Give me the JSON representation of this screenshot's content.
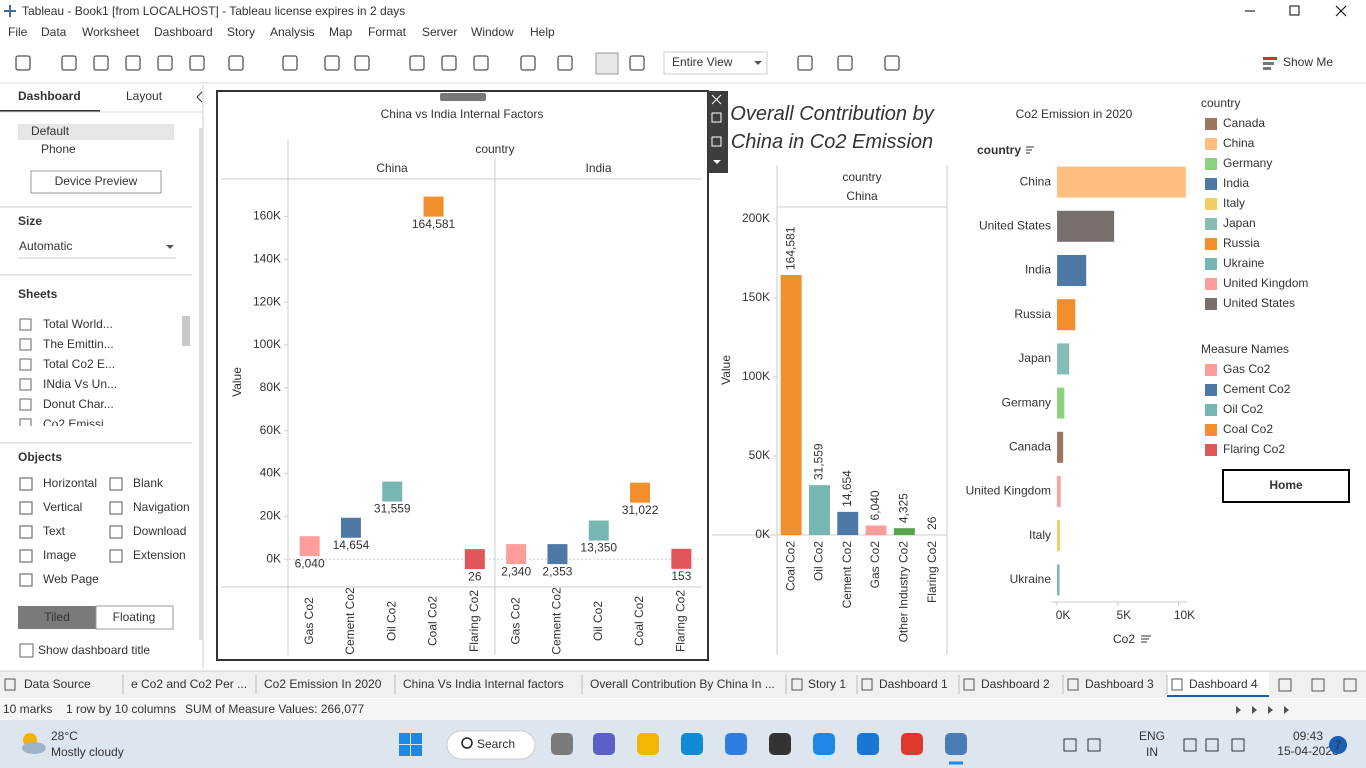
{
  "window": {
    "title": "Tableau - Book1 [from LOCALHOST] - Tableau license expires in 2 days"
  },
  "menu": [
    "File",
    "Data",
    "Worksheet",
    "Dashboard",
    "Story",
    "Analysis",
    "Map",
    "Format",
    "Server",
    "Window",
    "Help"
  ],
  "toolbar": {
    "view": "Entire View",
    "show_me": "Show Me"
  },
  "sidebar": {
    "tabs": [
      "Dashboard",
      "Layout"
    ],
    "devices": [
      "Default",
      "Phone"
    ],
    "device_preview": "Device Preview",
    "size_heading": "Size",
    "size": "Automatic",
    "sheets_heading": "Sheets",
    "sheets": [
      "Total World...",
      "The Emittin...",
      "Total Co2 E...",
      "INdia Vs Un...",
      "Donut Char...",
      "Co2 Emissi..."
    ],
    "objects_heading": "Objects",
    "objects": [
      "Horizontal",
      "Blank",
      "Vertical",
      "Navigation",
      "Text",
      "Download",
      "Image",
      "Extension",
      "Web Page"
    ],
    "layout_modes": [
      "Tiled",
      "Floating"
    ],
    "show_title": "Show dashboard title"
  },
  "chart_data": [
    {
      "type": "square",
      "title": "China vs India Internal Factors",
      "header": "country",
      "y_label": "Value",
      "categories": [
        "Gas Co2",
        "Cement Co2",
        "Oil Co2",
        "Coal Co2",
        "Flaring Co2"
      ],
      "colors": [
        "#ff9d9a",
        "#4e79a7",
        "#76b7b2",
        "#f28e2b",
        "#e15759"
      ],
      "series": [
        {
          "name": "China",
          "values": [
            6040,
            14654,
            31559,
            164581,
            26
          ],
          "value_labels": [
            "6,040",
            "14,654",
            "31,559",
            "164,581",
            "26"
          ]
        },
        {
          "name": "India",
          "values": [
            2340,
            2353,
            13350,
            31022,
            153
          ],
          "value_labels": [
            "2,340",
            "2,353",
            "13,350",
            "31,022",
            "153"
          ]
        }
      ],
      "ylim": [
        -13000,
        177000
      ],
      "yticks": [
        {
          "value": 0,
          "label": "0K"
        },
        {
          "value": 20000,
          "label": "20K"
        },
        {
          "value": 40000,
          "label": "40K"
        },
        {
          "value": 60000,
          "label": "60K"
        },
        {
          "value": 80000,
          "label": "80K"
        },
        {
          "value": 100000,
          "label": "100K"
        },
        {
          "value": 120000,
          "label": "120K"
        },
        {
          "value": 140000,
          "label": "140K"
        },
        {
          "value": 160000,
          "label": "160K"
        }
      ]
    },
    {
      "type": "bar",
      "title": "Overall Contribution by China in Co2 Emission",
      "header": "country",
      "facet": "China",
      "y_label": "Value",
      "categories": [
        "Coal Co2",
        "Oil Co2",
        "Cement Co2",
        "Gas Co2",
        "Other Industry Co2",
        "Flaring Co2"
      ],
      "values": [
        164581,
        31559,
        14654,
        6040,
        4325,
        26
      ],
      "value_labels": [
        "164,581",
        "31,559",
        "14,654",
        "6,040",
        "4,325",
        "26"
      ],
      "colors": [
        "#f28e2b",
        "#76b7b2",
        "#4e79a7",
        "#ff9d9a",
        "#59a14f",
        "#e15759"
      ],
      "ylim": [
        0,
        224700
      ],
      "yticks": [
        {
          "value": 0,
          "label": "0K"
        },
        {
          "value": 50000,
          "label": "50K"
        },
        {
          "value": 100000,
          "label": "100K"
        },
        {
          "value": 150000,
          "label": "150K"
        },
        {
          "value": 200000,
          "label": "200K"
        }
      ]
    },
    {
      "type": "hbar",
      "title": "Co2 Emission in 2020",
      "header": "country",
      "x_label": "Co2",
      "categories": [
        "China",
        "United States",
        "India",
        "Russia",
        "Japan",
        "Germany",
        "Canada",
        "United Kingdom",
        "Italy",
        "Ukraine"
      ],
      "values": [
        10600,
        4700,
        2400,
        1500,
        1000,
        600,
        500,
        300,
        250,
        200
      ],
      "colors": [
        "#ffbe7d",
        "#79706e",
        "#4e79a7",
        "#f28e2b",
        "#86bcb6",
        "#8cd17d",
        "#9c755f",
        "#ff9d9a",
        "#f1ce63",
        "#76b7b2"
      ],
      "xlim": [
        -500,
        10700
      ],
      "xticks": [
        {
          "value": 0,
          "label": "0K"
        },
        {
          "value": 5000,
          "label": "5K"
        },
        {
          "value": 10000,
          "label": "10K"
        }
      ]
    }
  ],
  "legends": [
    {
      "title": "country",
      "items": [
        {
          "label": "Canada",
          "color": "#9c755f"
        },
        {
          "label": "China",
          "color": "#ffbe7d"
        },
        {
          "label": "Germany",
          "color": "#8cd17d"
        },
        {
          "label": "India",
          "color": "#4e79a7"
        },
        {
          "label": "Italy",
          "color": "#f1ce63"
        },
        {
          "label": "Japan",
          "color": "#86bcb6"
        },
        {
          "label": "Russia",
          "color": "#f28e2b"
        },
        {
          "label": "Ukraine",
          "color": "#76b7b2"
        },
        {
          "label": "United Kingdom",
          "color": "#ff9d9a"
        },
        {
          "label": "United States",
          "color": "#79706e"
        }
      ]
    },
    {
      "title": "Measure Names",
      "items": [
        {
          "label": "Gas Co2",
          "color": "#ff9d9a"
        },
        {
          "label": "Cement Co2",
          "color": "#4e79a7"
        },
        {
          "label": "Oil Co2",
          "color": "#76b7b2"
        },
        {
          "label": "Coal Co2",
          "color": "#f28e2b"
        },
        {
          "label": "Flaring Co2",
          "color": "#e15759"
        }
      ]
    }
  ],
  "home_button": "Home",
  "tabs": [
    "Data Source",
    "e Co2 and Co2 Per ...",
    "Co2 Emission In 2020",
    "China Vs India Internal factors",
    "Overall Contribution By China In ...",
    "Story 1",
    "Dashboard 1",
    "Dashboard 2",
    "Dashboard 3",
    "Dashboard 4"
  ],
  "status": [
    "10 marks",
    "1 row by 10 columns",
    "SUM of Measure Values: 266,077"
  ],
  "taskbar": {
    "temperature": "28°C",
    "weather": "Mostly cloudy",
    "search": "Search",
    "language": "ENG",
    "region": "IN",
    "time": "09:43",
    "date": "15-04-2023",
    "notifications": "7"
  }
}
